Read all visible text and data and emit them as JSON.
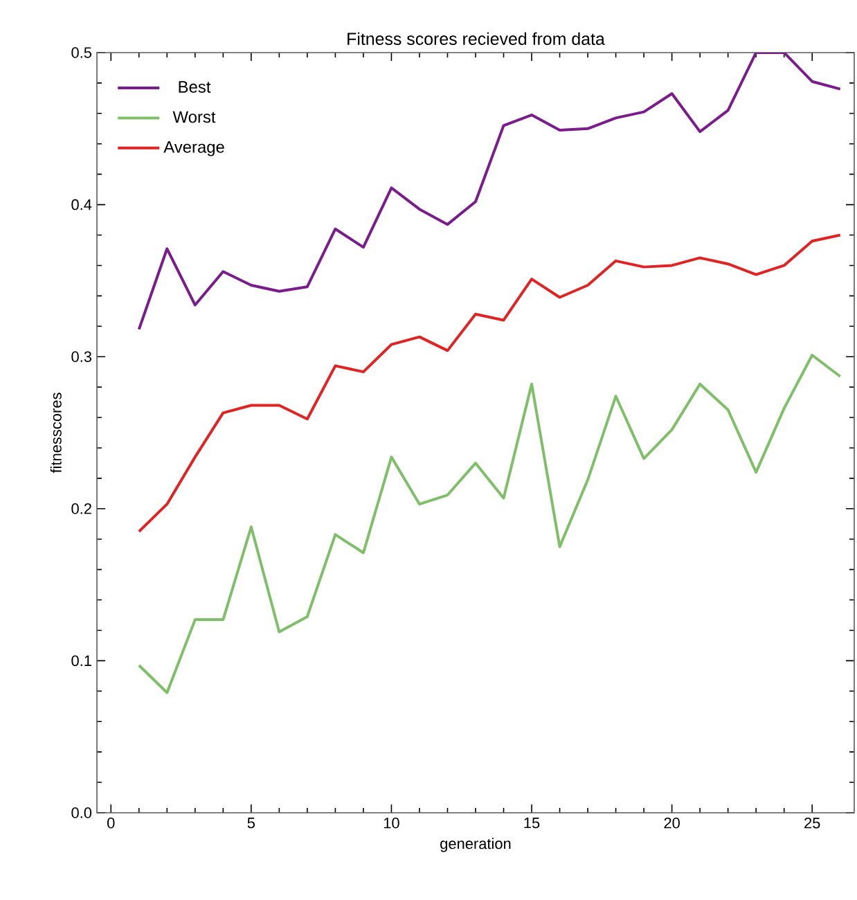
{
  "chart_data": {
    "type": "line",
    "title": "Fitness scores recieved from data",
    "xlabel": "generation",
    "ylabel": "fitnesscores",
    "x": [
      1,
      2,
      3,
      4,
      5,
      6,
      7,
      8,
      9,
      10,
      11,
      12,
      13,
      14,
      15,
      16,
      17,
      18,
      19,
      20,
      21,
      22,
      23,
      24,
      25,
      26
    ],
    "series": [
      {
        "name": "Best",
        "color": "#7a1c8c",
        "values": [
          0.318,
          0.371,
          0.334,
          0.356,
          0.347,
          0.343,
          0.346,
          0.384,
          0.372,
          0.411,
          0.397,
          0.387,
          0.402,
          0.452,
          0.459,
          0.449,
          0.45,
          0.457,
          0.461,
          0.473,
          0.448,
          0.462,
          0.5,
          0.5,
          0.481,
          0.476
        ]
      },
      {
        "name": "Worst",
        "color": "#80bf6a",
        "values": [
          0.097,
          0.079,
          0.127,
          0.127,
          0.188,
          0.119,
          0.129,
          0.183,
          0.171,
          0.234,
          0.203,
          0.209,
          0.23,
          0.207,
          0.282,
          0.175,
          0.219,
          0.274,
          0.233,
          0.252,
          0.282,
          0.265,
          0.224,
          0.266,
          0.301,
          0.287
        ]
      },
      {
        "name": "Average",
        "color": "#e02424",
        "values": [
          0.185,
          0.203,
          0.234,
          0.263,
          0.268,
          0.268,
          0.259,
          0.294,
          0.29,
          0.308,
          0.313,
          0.304,
          0.328,
          0.324,
          0.351,
          0.339,
          0.347,
          0.363,
          0.359,
          0.36,
          0.365,
          0.361,
          0.354,
          0.36,
          0.376,
          0.38
        ]
      }
    ],
    "xlim": [
      -0.5,
      26.5
    ],
    "ylim": [
      0,
      0.5
    ],
    "xticks": [
      0,
      5,
      10,
      15,
      20,
      25
    ],
    "yticks": [
      {
        "value": 0,
        "label": "0.0"
      },
      0.1,
      0.2,
      0.3,
      0.4,
      0.5
    ],
    "grid": false,
    "legend": "top left",
    "marker": "none",
    "line_style": "solid"
  }
}
